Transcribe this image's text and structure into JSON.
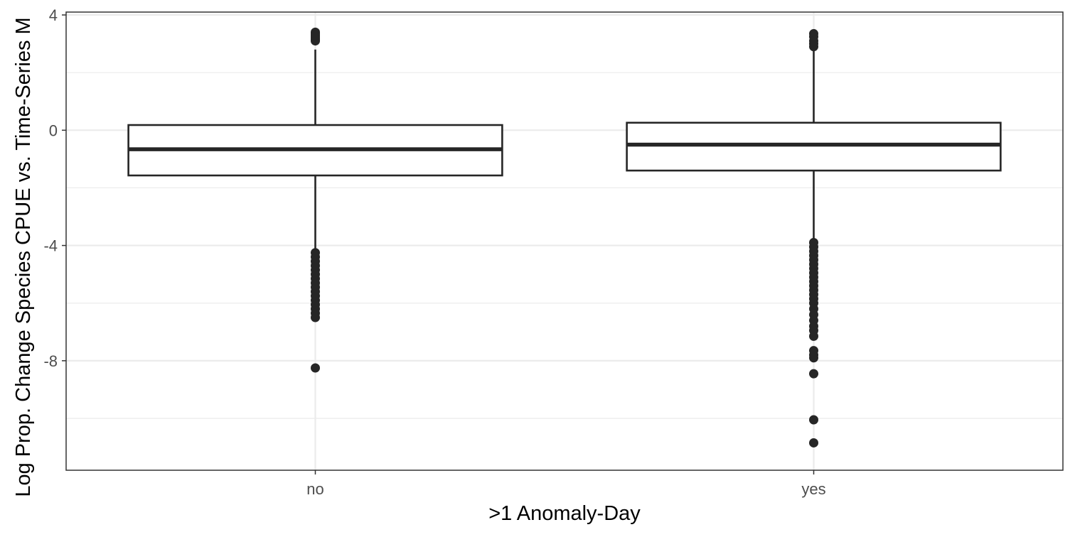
{
  "chart_data": {
    "type": "box",
    "xlabel": ">1 Anomaly-Day",
    "ylabel": "Log Prop. Change Species CPUE vs. Time-Series M",
    "categories": [
      "no",
      "yes"
    ],
    "ylim": [
      -11.8,
      4.1
    ],
    "y_ticks": [
      -8,
      -4,
      0,
      4
    ],
    "y_tick_labels": [
      "-8",
      "-4",
      "0",
      "4"
    ],
    "grid": true,
    "boxes": [
      {
        "category": "no",
        "q1": -1.57,
        "median": -0.66,
        "q3": 0.18,
        "whisker_low": -4.2,
        "whisker_high": 2.8,
        "outliers": [
          3.4,
          3.35,
          3.3,
          3.25,
          3.2,
          3.15,
          3.1,
          -4.25,
          -4.4,
          -4.55,
          -4.7,
          -4.85,
          -5.0,
          -5.15,
          -5.3,
          -5.45,
          -5.6,
          -5.75,
          -5.9,
          -6.05,
          -6.2,
          -6.35,
          -6.5,
          -8.25
        ]
      },
      {
        "category": "yes",
        "q1": -1.4,
        "median": -0.5,
        "q3": 0.26,
        "whisker_low": -3.85,
        "whisker_high": 2.8,
        "outliers": [
          3.35,
          3.25,
          3.1,
          3.0,
          2.9,
          -3.9,
          -4.05,
          -4.2,
          -4.35,
          -4.5,
          -4.65,
          -4.8,
          -4.95,
          -5.1,
          -5.25,
          -5.4,
          -5.55,
          -5.7,
          -5.85,
          -6.0,
          -6.2,
          -6.4,
          -6.6,
          -6.8,
          -6.95,
          -7.15,
          -7.65,
          -7.8,
          -7.9,
          -8.45,
          -10.05,
          -10.85
        ]
      }
    ]
  }
}
